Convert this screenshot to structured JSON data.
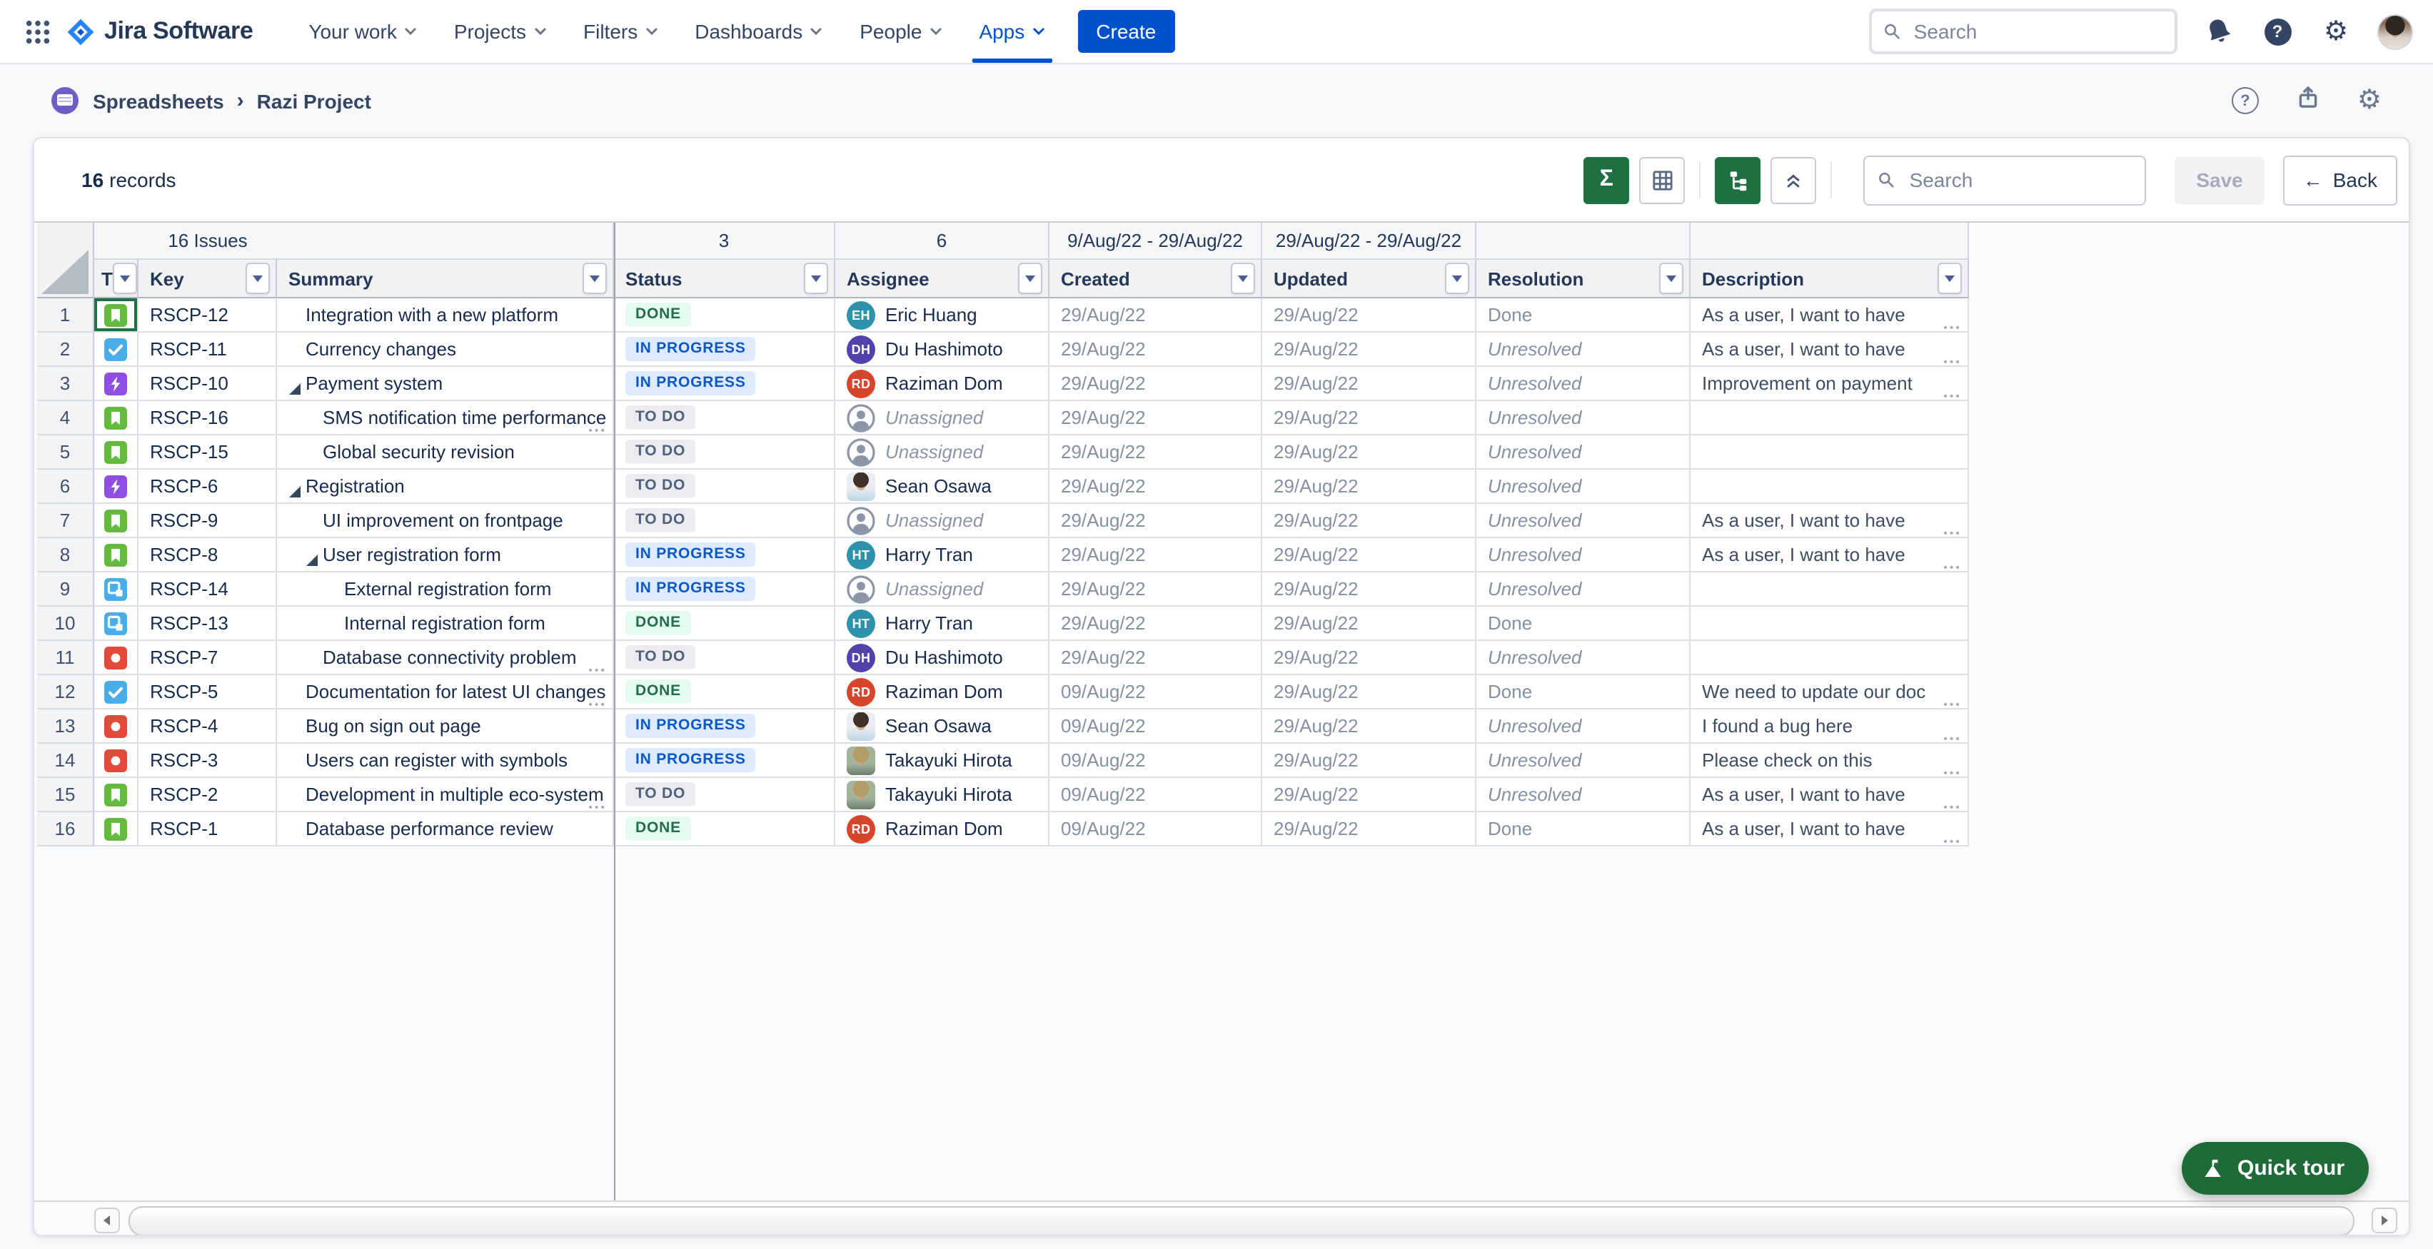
{
  "nav": {
    "app_name": "Jira Software",
    "menus": [
      {
        "label": "Your work"
      },
      {
        "label": "Projects"
      },
      {
        "label": "Filters"
      },
      {
        "label": "Dashboards"
      },
      {
        "label": "People"
      },
      {
        "label": "Apps"
      }
    ],
    "active_menu": "Apps",
    "create_label": "Create",
    "search_placeholder": "Search"
  },
  "breadcrumb": {
    "items": [
      "Spreadsheets",
      "Razi Project"
    ],
    "separator": "›"
  },
  "toolbar": {
    "records_count": "16",
    "records_label": "records",
    "sigma_glyph": "Σ",
    "search_placeholder": "Search",
    "save_label": "Save",
    "back_arrow": "←",
    "back_label": "Back"
  },
  "grid": {
    "columns": [
      "T",
      "Key",
      "Summary",
      "Status",
      "Assignee",
      "Created",
      "Updated",
      "Resolution",
      "Description"
    ],
    "group": {
      "issues": "16 Issues",
      "status_count": "3",
      "assignee_count": "6",
      "created_range": "9/Aug/22 - 29/Aug/22",
      "updated_range": "29/Aug/22 - 29/Aug/22"
    },
    "rows": [
      {
        "num": "1",
        "type": "story",
        "key": "RSCP-12",
        "summary": "Integration with a new platform",
        "indent": 0,
        "caret": false,
        "summary_truncated": false,
        "status": "DONE",
        "assignee": {
          "name": "Eric Huang",
          "kind": "initials",
          "initials": "EH",
          "color": "#2E93AA"
        },
        "created": "29/Aug/22",
        "updated": "29/Aug/22",
        "resolution": "Done",
        "description": "As a user, I want to have",
        "description_truncated": true,
        "selected_cell": "type"
      },
      {
        "num": "2",
        "type": "task",
        "key": "RSCP-11",
        "summary": "Currency changes",
        "indent": 0,
        "caret": false,
        "summary_truncated": false,
        "status": "IN PROGRESS",
        "assignee": {
          "name": "Du Hashimoto",
          "kind": "initials",
          "initials": "DH",
          "color": "#5243AA"
        },
        "created": "29/Aug/22",
        "updated": "29/Aug/22",
        "resolution": "Unresolved",
        "description": "As a user, I want to have",
        "description_truncated": true
      },
      {
        "num": "3",
        "type": "epic",
        "key": "RSCP-10",
        "summary": "Payment system",
        "indent": 0,
        "caret": true,
        "summary_truncated": false,
        "status": "IN PROGRESS",
        "assignee": {
          "name": "Raziman Dom",
          "kind": "initials",
          "initials": "RD",
          "color": "#D8452B"
        },
        "created": "29/Aug/22",
        "updated": "29/Aug/22",
        "resolution": "Unresolved",
        "description": "Improvement on payment",
        "description_truncated": true
      },
      {
        "num": "4",
        "type": "story",
        "key": "RSCP-16",
        "summary": "SMS notification time performance",
        "indent": 1,
        "caret": false,
        "summary_truncated": true,
        "status": "TO DO",
        "assignee": {
          "name": "Unassigned",
          "kind": "none"
        },
        "created": "29/Aug/22",
        "updated": "29/Aug/22",
        "resolution": "Unresolved",
        "description": "",
        "description_truncated": false
      },
      {
        "num": "5",
        "type": "story",
        "key": "RSCP-15",
        "summary": "Global security revision",
        "indent": 1,
        "caret": false,
        "summary_truncated": false,
        "status": "TO DO",
        "assignee": {
          "name": "Unassigned",
          "kind": "none"
        },
        "created": "29/Aug/22",
        "updated": "29/Aug/22",
        "resolution": "Unresolved",
        "description": "",
        "description_truncated": false
      },
      {
        "num": "6",
        "type": "epic",
        "key": "RSCP-6",
        "summary": "Registration",
        "indent": 0,
        "caret": true,
        "summary_truncated": false,
        "status": "TO DO",
        "assignee": {
          "name": "Sean Osawa",
          "kind": "photo",
          "photo": "sean"
        },
        "created": "29/Aug/22",
        "updated": "29/Aug/22",
        "resolution": "Unresolved",
        "description": "",
        "description_truncated": false
      },
      {
        "num": "7",
        "type": "story",
        "key": "RSCP-9",
        "summary": "UI improvement on frontpage",
        "indent": 1,
        "caret": false,
        "summary_truncated": false,
        "status": "TO DO",
        "assignee": {
          "name": "Unassigned",
          "kind": "none"
        },
        "created": "29/Aug/22",
        "updated": "29/Aug/22",
        "resolution": "Unresolved",
        "description": "As a user, I want to have",
        "description_truncated": true
      },
      {
        "num": "8",
        "type": "story",
        "key": "RSCP-8",
        "summary": "User registration form",
        "indent": 1,
        "caret": true,
        "summary_truncated": false,
        "status": "IN PROGRESS",
        "assignee": {
          "name": "Harry Tran",
          "kind": "initials",
          "initials": "HT",
          "color": "#2E93AA"
        },
        "created": "29/Aug/22",
        "updated": "29/Aug/22",
        "resolution": "Unresolved",
        "description": "As a user, I want to have",
        "description_truncated": true
      },
      {
        "num": "9",
        "type": "subtask",
        "key": "RSCP-14",
        "summary": "External registration form",
        "indent": 2,
        "caret": false,
        "summary_truncated": false,
        "status": "IN PROGRESS",
        "assignee": {
          "name": "Unassigned",
          "kind": "none"
        },
        "created": "29/Aug/22",
        "updated": "29/Aug/22",
        "resolution": "Unresolved",
        "description": "",
        "description_truncated": false
      },
      {
        "num": "10",
        "type": "subtask",
        "key": "RSCP-13",
        "summary": "Internal registration form",
        "indent": 2,
        "caret": false,
        "summary_truncated": false,
        "status": "DONE",
        "assignee": {
          "name": "Harry Tran",
          "kind": "initials",
          "initials": "HT",
          "color": "#2E93AA"
        },
        "created": "29/Aug/22",
        "updated": "29/Aug/22",
        "resolution": "Done",
        "description": "",
        "description_truncated": false
      },
      {
        "num": "11",
        "type": "bug",
        "key": "RSCP-7",
        "summary": "Database connectivity problem",
        "indent": 1,
        "caret": false,
        "summary_truncated": true,
        "status": "TO DO",
        "assignee": {
          "name": "Du Hashimoto",
          "kind": "initials",
          "initials": "DH",
          "color": "#5243AA"
        },
        "created": "29/Aug/22",
        "updated": "29/Aug/22",
        "resolution": "Unresolved",
        "description": "",
        "description_truncated": false
      },
      {
        "num": "12",
        "type": "task",
        "key": "RSCP-5",
        "summary": "Documentation for latest UI changes",
        "indent": 0,
        "caret": false,
        "summary_truncated": true,
        "status": "DONE",
        "assignee": {
          "name": "Raziman Dom",
          "kind": "initials",
          "initials": "RD",
          "color": "#D8452B"
        },
        "created": "09/Aug/22",
        "updated": "29/Aug/22",
        "resolution": "Done",
        "description": "We need to update our doc",
        "description_truncated": true
      },
      {
        "num": "13",
        "type": "bug",
        "key": "RSCP-4",
        "summary": "Bug on sign out page",
        "indent": 0,
        "caret": false,
        "summary_truncated": false,
        "status": "IN PROGRESS",
        "assignee": {
          "name": "Sean Osawa",
          "kind": "photo",
          "photo": "sean"
        },
        "created": "09/Aug/22",
        "updated": "29/Aug/22",
        "resolution": "Unresolved",
        "description": "I found a bug here",
        "description_truncated": true
      },
      {
        "num": "14",
        "type": "bug",
        "key": "RSCP-3",
        "summary": "Users can register with symbols",
        "indent": 0,
        "caret": false,
        "summary_truncated": false,
        "status": "IN PROGRESS",
        "assignee": {
          "name": "Takayuki Hirota",
          "kind": "photo",
          "photo": "takayuki"
        },
        "created": "09/Aug/22",
        "updated": "29/Aug/22",
        "resolution": "Unresolved",
        "description": "Please check on this",
        "description_truncated": true
      },
      {
        "num": "15",
        "type": "story",
        "key": "RSCP-2",
        "summary": "Development in multiple eco-system",
        "indent": 0,
        "caret": false,
        "summary_truncated": true,
        "status": "TO DO",
        "assignee": {
          "name": "Takayuki Hirota",
          "kind": "photo",
          "photo": "takayuki"
        },
        "created": "09/Aug/22",
        "updated": "29/Aug/22",
        "resolution": "Unresolved",
        "description": "As a user, I want to have",
        "description_truncated": true
      },
      {
        "num": "16",
        "type": "story",
        "key": "RSCP-1",
        "summary": "Database performance review",
        "indent": 0,
        "caret": false,
        "summary_truncated": false,
        "status": "DONE",
        "assignee": {
          "name": "Raziman Dom",
          "kind": "initials",
          "initials": "RD",
          "color": "#D8452B"
        },
        "created": "09/Aug/22",
        "updated": "29/Aug/22",
        "resolution": "Done",
        "description": "As a user, I want to have",
        "description_truncated": true
      }
    ]
  },
  "quick_tour": {
    "label": "Quick tour"
  },
  "colors": {
    "brand_blue": "#0052CC",
    "nav_text": "#344563",
    "green_button": "#1E6F41",
    "quick_tour_green": "#1E6B38",
    "status_done_bg": "#E3FCEF",
    "status_done_text": "#216E4E",
    "status_inprogress_bg": "#DEEBFF",
    "status_inprogress_text": "#0B57C9",
    "status_todo_bg": "#EAECF0",
    "status_todo_text": "#51607B",
    "type_story": "#63BA3C",
    "type_task": "#4BADE8",
    "type_epic": "#904EE2",
    "type_bug": "#E5493A",
    "type_subtask": "#4BADE8",
    "selected_cell_border": "#1E7145"
  }
}
